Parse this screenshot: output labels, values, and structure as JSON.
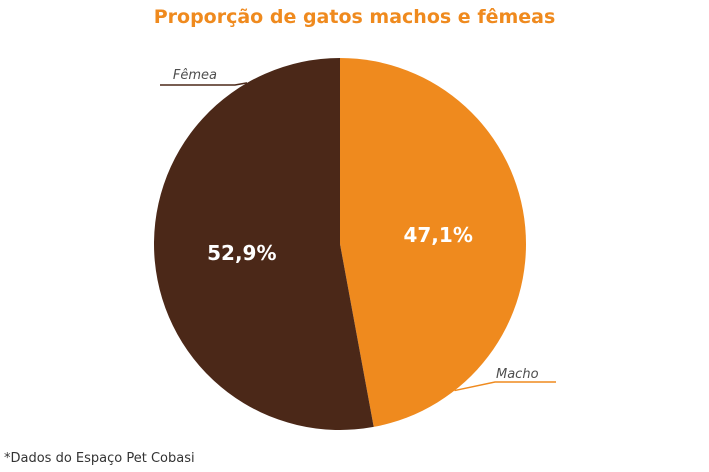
{
  "chart_data": {
    "type": "pie",
    "title": "Proporção de gatos machos e fêmeas",
    "slices": [
      {
        "name": "Macho",
        "value": 47.1,
        "value_label": "47,1%",
        "color": "#ef8a1e"
      },
      {
        "name": "Fêmea",
        "value": 52.9,
        "value_label": "52,9%",
        "color": "#4b2818"
      }
    ],
    "legend": "callout labels"
  },
  "footnote": "*Dados do Espaço Pet Cobasi"
}
